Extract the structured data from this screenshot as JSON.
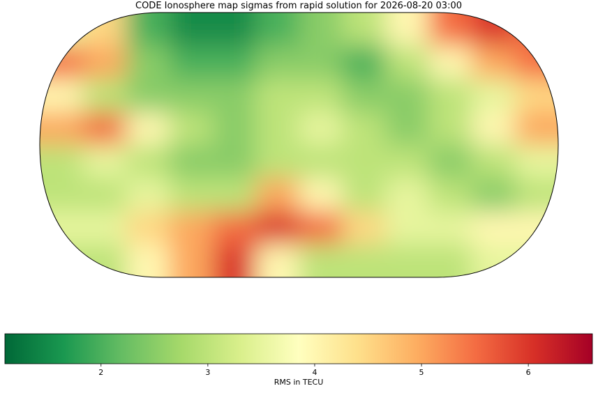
{
  "chart_data": {
    "type": "heatmap",
    "title": "CODE Ionosphere map sigmas from rapid solution for 2026-08-20 03:00",
    "xlim": [
      -180,
      180
    ],
    "ylim": [
      -90,
      90
    ],
    "colormap": "RdYlGn_r",
    "z": [
      [
        3.5,
        4.5,
        2,
        1.5,
        1.5,
        2,
        2.5,
        3,
        4,
        5.5,
        6,
        5.5
      ],
      [
        5.5,
        5,
        2.5,
        2,
        2,
        2.5,
        2.5,
        2,
        3,
        4,
        5,
        5.5
      ],
      [
        4,
        3,
        2.5,
        2.5,
        2.5,
        3,
        3,
        2.5,
        2.5,
        3,
        3.5,
        4.5
      ],
      [
        5,
        5.5,
        4,
        3,
        2.5,
        3,
        3.5,
        3,
        2.5,
        3,
        4,
        5
      ],
      [
        3,
        3.5,
        3,
        2.5,
        2.5,
        3,
        3,
        3,
        3,
        2.5,
        3,
        3.5
      ],
      [
        3,
        3,
        3.5,
        3,
        3,
        5,
        4,
        3,
        3.5,
        3,
        2.5,
        3
      ],
      [
        3.5,
        3.5,
        4.5,
        5,
        5.5,
        6,
        5.5,
        4.5,
        3.5,
        3.5,
        4,
        4
      ],
      [
        3,
        3,
        4,
        5,
        6,
        4,
        3,
        3,
        3,
        3,
        3.5,
        3.5
      ]
    ],
    "colorbar": {
      "label": "RMS in TECU",
      "lim": [
        1.1,
        6.6
      ],
      "ticks": [
        2,
        3,
        4,
        5,
        6
      ]
    }
  }
}
